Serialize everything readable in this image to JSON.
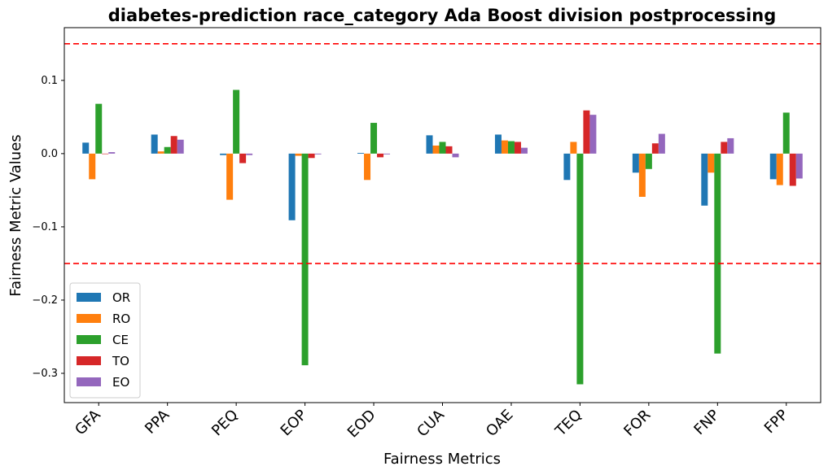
{
  "chart_data": {
    "type": "bar",
    "title": "diabetes-prediction race_category Ada Boost division postprocessing",
    "xlabel": "Fairness Metrics",
    "ylabel": "Fairness Metric Values",
    "categories": [
      "GFA",
      "PPA",
      "PEQ",
      "EOP",
      "EOD",
      "CUA",
      "OAE",
      "TEQ",
      "FOR",
      "FNP",
      "FPP"
    ],
    "series": [
      {
        "name": "OR",
        "color": "#1f77b4",
        "values": [
          0.015,
          0.026,
          -0.002,
          -0.091,
          0.001,
          0.025,
          0.026,
          -0.036,
          -0.026,
          -0.071,
          -0.035
        ]
      },
      {
        "name": "RO",
        "color": "#ff7f0e",
        "values": [
          -0.035,
          0.003,
          -0.063,
          -0.003,
          -0.036,
          0.011,
          0.018,
          0.016,
          -0.059,
          -0.026,
          -0.043
        ]
      },
      {
        "name": "CE",
        "color": "#2ca02c",
        "values": [
          0.068,
          0.009,
          0.087,
          -0.289,
          0.042,
          0.016,
          0.017,
          -0.315,
          -0.021,
          -0.273,
          0.056
        ]
      },
      {
        "name": "TO",
        "color": "#d62728",
        "values": [
          0.0,
          0.024,
          -0.013,
          -0.006,
          -0.005,
          0.01,
          0.016,
          0.059,
          0.014,
          0.016,
          -0.044
        ]
      },
      {
        "name": "EO",
        "color": "#9467bd",
        "values": [
          0.002,
          0.019,
          -0.002,
          -0.001,
          -0.001,
          -0.005,
          0.008,
          0.053,
          0.027,
          0.021,
          -0.034
        ]
      }
    ],
    "ylim": [
      -0.34,
      0.172
    ],
    "yticks": [
      0.1,
      0.0,
      -0.1,
      -0.2,
      -0.3
    ],
    "ytick_labels": [
      "0.1",
      "0.0",
      "−0.1",
      "−0.2",
      "−0.3"
    ],
    "threshold_lines": [
      0.15,
      -0.15
    ],
    "threshold_color": "#ff0000",
    "legend_position": "lower-left",
    "grid": false
  }
}
